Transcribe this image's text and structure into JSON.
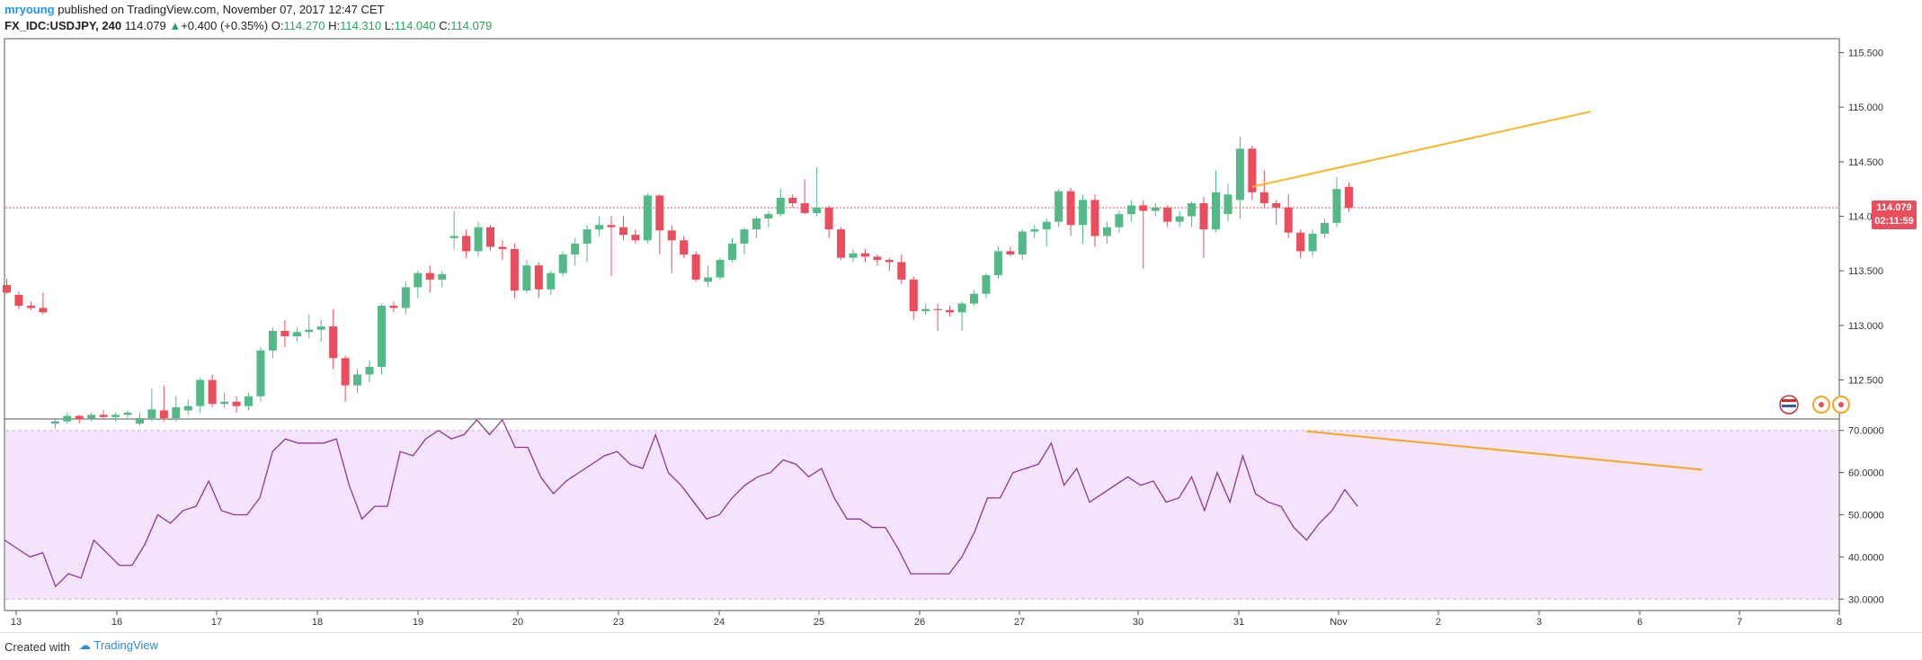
{
  "header": {
    "author": "mryoung",
    "published_text": "published on TradingView.com, November 07, 2017 12:47 CET",
    "symbol": "FX_IDC:USDJPY, 240",
    "last": "114.079",
    "change_arrow": "▲",
    "change": "+0.400 (+0.35%)",
    "o_label": "O:",
    "o_value": "114.270",
    "h_label": "H:",
    "h_value": "114.310",
    "l_label": "L:",
    "l_value": "114.040",
    "c_label": "C:",
    "c_value": "114.079"
  },
  "footer": {
    "created_with": "Created with",
    "brand": "TradingView"
  },
  "price_badge": {
    "price": "114.079",
    "countdown": "02:11:59"
  },
  "colors": {
    "up": "#53b987",
    "down": "#eb4d5c",
    "rsi": "#8e3796",
    "rsi_band": "#f3e3fb",
    "trend": "#f5b728"
  },
  "chart_data": [
    {
      "type": "candlestick",
      "title": "FX_IDC:USDJPY, 240",
      "ylim": [
        112.15,
        115.62
      ],
      "y_ticks": [
        "115.500",
        "115.000",
        "114.500",
        "114.000",
        "113.500",
        "113.000",
        "112.500"
      ],
      "x_ticks": [
        "13",
        "16",
        "17",
        "18",
        "19",
        "20",
        "23",
        "24",
        "25",
        "26",
        "27",
        "30",
        "31",
        "Nov",
        "2",
        "3",
        "6",
        "7",
        "8"
      ],
      "current_price": 114.079,
      "candles": [
        [
          113.37,
          113.43,
          113.29,
          113.3
        ],
        [
          113.28,
          113.31,
          113.15,
          113.18
        ],
        [
          113.18,
          113.22,
          113.14,
          113.16
        ],
        [
          113.16,
          113.3,
          113.1,
          113.12
        ],
        [
          112.1,
          112.15,
          112.05,
          112.12
        ],
        [
          112.12,
          112.2,
          112.1,
          112.17
        ],
        [
          112.17,
          112.18,
          112.1,
          112.14
        ],
        [
          112.14,
          112.2,
          112.12,
          112.18
        ],
        [
          112.18,
          112.22,
          112.14,
          112.16
        ],
        [
          112.16,
          112.2,
          112.12,
          112.18
        ],
        [
          112.18,
          112.22,
          112.15,
          112.2
        ],
        [
          112.1,
          112.2,
          112.08,
          112.15
        ],
        [
          112.15,
          112.42,
          112.12,
          112.23
        ],
        [
          112.22,
          112.45,
          112.12,
          112.15
        ],
        [
          112.15,
          112.35,
          112.12,
          112.25
        ],
        [
          112.22,
          112.32,
          112.18,
          112.26
        ],
        [
          112.26,
          112.52,
          112.2,
          112.5
        ],
        [
          112.5,
          112.55,
          112.25,
          112.28
        ],
        [
          112.28,
          112.38,
          112.25,
          112.3
        ],
        [
          112.3,
          112.35,
          112.2,
          112.26
        ],
        [
          112.26,
          112.38,
          112.22,
          112.35
        ],
        [
          112.35,
          112.8,
          112.3,
          112.77
        ],
        [
          112.77,
          112.98,
          112.7,
          112.95
        ],
        [
          112.95,
          113.05,
          112.8,
          112.9
        ],
        [
          112.9,
          112.98,
          112.85,
          112.94
        ],
        [
          112.94,
          113.1,
          112.88,
          112.96
        ],
        [
          112.96,
          113.05,
          112.85,
          112.99
        ],
        [
          112.99,
          113.15,
          112.6,
          112.7
        ],
        [
          112.7,
          112.72,
          112.3,
          112.45
        ],
        [
          112.45,
          112.6,
          112.38,
          112.55
        ],
        [
          112.55,
          112.68,
          112.48,
          112.62
        ],
        [
          112.62,
          113.2,
          112.55,
          113.18
        ],
        [
          113.18,
          113.22,
          113.12,
          113.16
        ],
        [
          113.16,
          113.4,
          113.1,
          113.35
        ],
        [
          113.35,
          113.5,
          113.25,
          113.48
        ],
        [
          113.48,
          113.55,
          113.3,
          113.42
        ],
        [
          113.42,
          113.5,
          113.35,
          113.47
        ],
        [
          113.8,
          114.05,
          113.7,
          113.82
        ],
        [
          113.82,
          113.88,
          113.62,
          113.68
        ],
        [
          113.68,
          113.95,
          113.63,
          113.9
        ],
        [
          113.9,
          113.92,
          113.68,
          113.72
        ],
        [
          113.72,
          113.78,
          113.6,
          113.7
        ],
        [
          113.7,
          113.75,
          113.25,
          113.32
        ],
        [
          113.32,
          113.6,
          113.3,
          113.55
        ],
        [
          113.55,
          113.58,
          113.25,
          113.33
        ],
        [
          113.33,
          113.5,
          113.28,
          113.48
        ],
        [
          113.48,
          113.68,
          113.45,
          113.65
        ],
        [
          113.65,
          113.8,
          113.55,
          113.75
        ],
        [
          113.75,
          113.92,
          113.58,
          113.88
        ],
        [
          113.88,
          114.0,
          113.82,
          113.92
        ],
        [
          113.92,
          114.0,
          113.45,
          113.9
        ],
        [
          113.9,
          114.0,
          113.78,
          113.83
        ],
        [
          113.83,
          113.88,
          113.75,
          113.78
        ],
        [
          113.78,
          114.21,
          113.75,
          114.19
        ],
        [
          114.19,
          114.2,
          113.65,
          113.87
        ],
        [
          113.87,
          113.92,
          113.48,
          113.78
        ],
        [
          113.78,
          113.82,
          113.62,
          113.65
        ],
        [
          113.65,
          113.68,
          113.4,
          113.42
        ],
        [
          113.4,
          113.55,
          113.35,
          113.44
        ],
        [
          113.44,
          113.62,
          113.42,
          113.6
        ],
        [
          113.6,
          113.8,
          113.58,
          113.75
        ],
        [
          113.75,
          113.9,
          113.65,
          113.88
        ],
        [
          113.88,
          114.0,
          113.8,
          113.98
        ],
        [
          113.98,
          114.05,
          113.9,
          114.02
        ],
        [
          114.02,
          114.25,
          114.0,
          114.17
        ],
        [
          114.17,
          114.2,
          114.08,
          114.12
        ],
        [
          114.12,
          114.34,
          114.02,
          114.03
        ],
        [
          114.03,
          114.45,
          114.0,
          114.08
        ],
        [
          114.08,
          114.1,
          113.8,
          113.88
        ],
        [
          113.88,
          113.9,
          113.6,
          113.62
        ],
        [
          113.62,
          113.7,
          113.58,
          113.66
        ],
        [
          113.66,
          113.7,
          113.58,
          113.63
        ],
        [
          113.63,
          113.65,
          113.55,
          113.6
        ],
        [
          113.6,
          113.62,
          113.5,
          113.58
        ],
        [
          113.58,
          113.65,
          113.38,
          113.42
        ],
        [
          113.42,
          113.45,
          113.05,
          113.13
        ],
        [
          113.13,
          113.2,
          113.1,
          113.15
        ],
        [
          113.15,
          113.2,
          112.95,
          113.14
        ],
        [
          113.14,
          113.18,
          113.08,
          113.12
        ],
        [
          113.12,
          113.22,
          112.95,
          113.2
        ],
        [
          113.2,
          113.32,
          113.18,
          113.29
        ],
        [
          113.29,
          113.48,
          113.25,
          113.46
        ],
        [
          113.46,
          113.72,
          113.43,
          113.68
        ],
        [
          113.68,
          113.72,
          113.63,
          113.65
        ],
        [
          113.65,
          113.88,
          113.6,
          113.86
        ],
        [
          113.86,
          113.92,
          113.8,
          113.88
        ],
        [
          113.88,
          113.98,
          113.72,
          113.95
        ],
        [
          113.95,
          114.25,
          113.9,
          114.23
        ],
        [
          114.23,
          114.26,
          113.82,
          113.92
        ],
        [
          113.92,
          114.2,
          113.75,
          114.15
        ],
        [
          114.15,
          114.2,
          113.72,
          113.82
        ],
        [
          113.82,
          113.95,
          113.75,
          113.9
        ],
        [
          113.9,
          114.05,
          113.85,
          114.02
        ],
        [
          114.02,
          114.15,
          113.95,
          114.1
        ],
        [
          114.1,
          114.15,
          113.52,
          114.05
        ],
        [
          114.05,
          114.12,
          114.0,
          114.08
        ],
        [
          114.08,
          114.1,
          113.9,
          113.95
        ],
        [
          113.95,
          114.05,
          113.9,
          114.0
        ],
        [
          114.0,
          114.14,
          113.9,
          114.12
        ],
        [
          114.12,
          114.18,
          113.62,
          113.88
        ],
        [
          113.88,
          114.42,
          113.85,
          114.22
        ],
        [
          114.02,
          114.3,
          113.95,
          114.2
        ],
        [
          114.15,
          114.73,
          113.98,
          114.62
        ],
        [
          114.62,
          114.65,
          114.15,
          114.22
        ],
        [
          114.22,
          114.42,
          114.08,
          114.12
        ],
        [
          114.12,
          114.15,
          113.92,
          114.08
        ],
        [
          114.08,
          114.2,
          113.8,
          113.85
        ],
        [
          113.85,
          113.88,
          113.62,
          113.68
        ],
        [
          113.68,
          113.88,
          113.63,
          113.84
        ],
        [
          113.84,
          113.98,
          113.8,
          113.94
        ],
        [
          113.94,
          114.36,
          113.9,
          114.25
        ],
        [
          114.27,
          114.31,
          114.04,
          114.079
        ]
      ],
      "trendline": {
        "from": [
          103,
          114.27
        ],
        "to": [
          131,
          114.96
        ]
      }
    },
    {
      "type": "line",
      "title": "RSI",
      "ylim": [
        27.5,
        72.5
      ],
      "y_ticks": [
        "70.0000",
        "60.0000",
        "50.0000",
        "40.0000",
        "30.0000"
      ],
      "band": [
        30,
        70
      ],
      "values": [
        44,
        42,
        40,
        41,
        33,
        36,
        35,
        44,
        41,
        38,
        38,
        43,
        50,
        48,
        51,
        52,
        58,
        51,
        50,
        50,
        54,
        65,
        68,
        67,
        67,
        67,
        68,
        57,
        49,
        52,
        52,
        65,
        64,
        68,
        70,
        68,
        69,
        74,
        69,
        73,
        66,
        66,
        59,
        55,
        58,
        60,
        62,
        64,
        65,
        62,
        61,
        69,
        60,
        57,
        53,
        49,
        50,
        54,
        57,
        59,
        60,
        63,
        62,
        59,
        61,
        54,
        49,
        49,
        47,
        47,
        42,
        36,
        36,
        36,
        36,
        40,
        46,
        54,
        54,
        60,
        61,
        62,
        67,
        57,
        61,
        53,
        55,
        57,
        59,
        57,
        58,
        53,
        54,
        59,
        51,
        60,
        53,
        64,
        55,
        53,
        52,
        47,
        44,
        48,
        51,
        56,
        52
      ],
      "trendline": {
        "from": [
          102,
          69.8
        ],
        "to": [
          133,
          60.7
        ]
      }
    }
  ]
}
